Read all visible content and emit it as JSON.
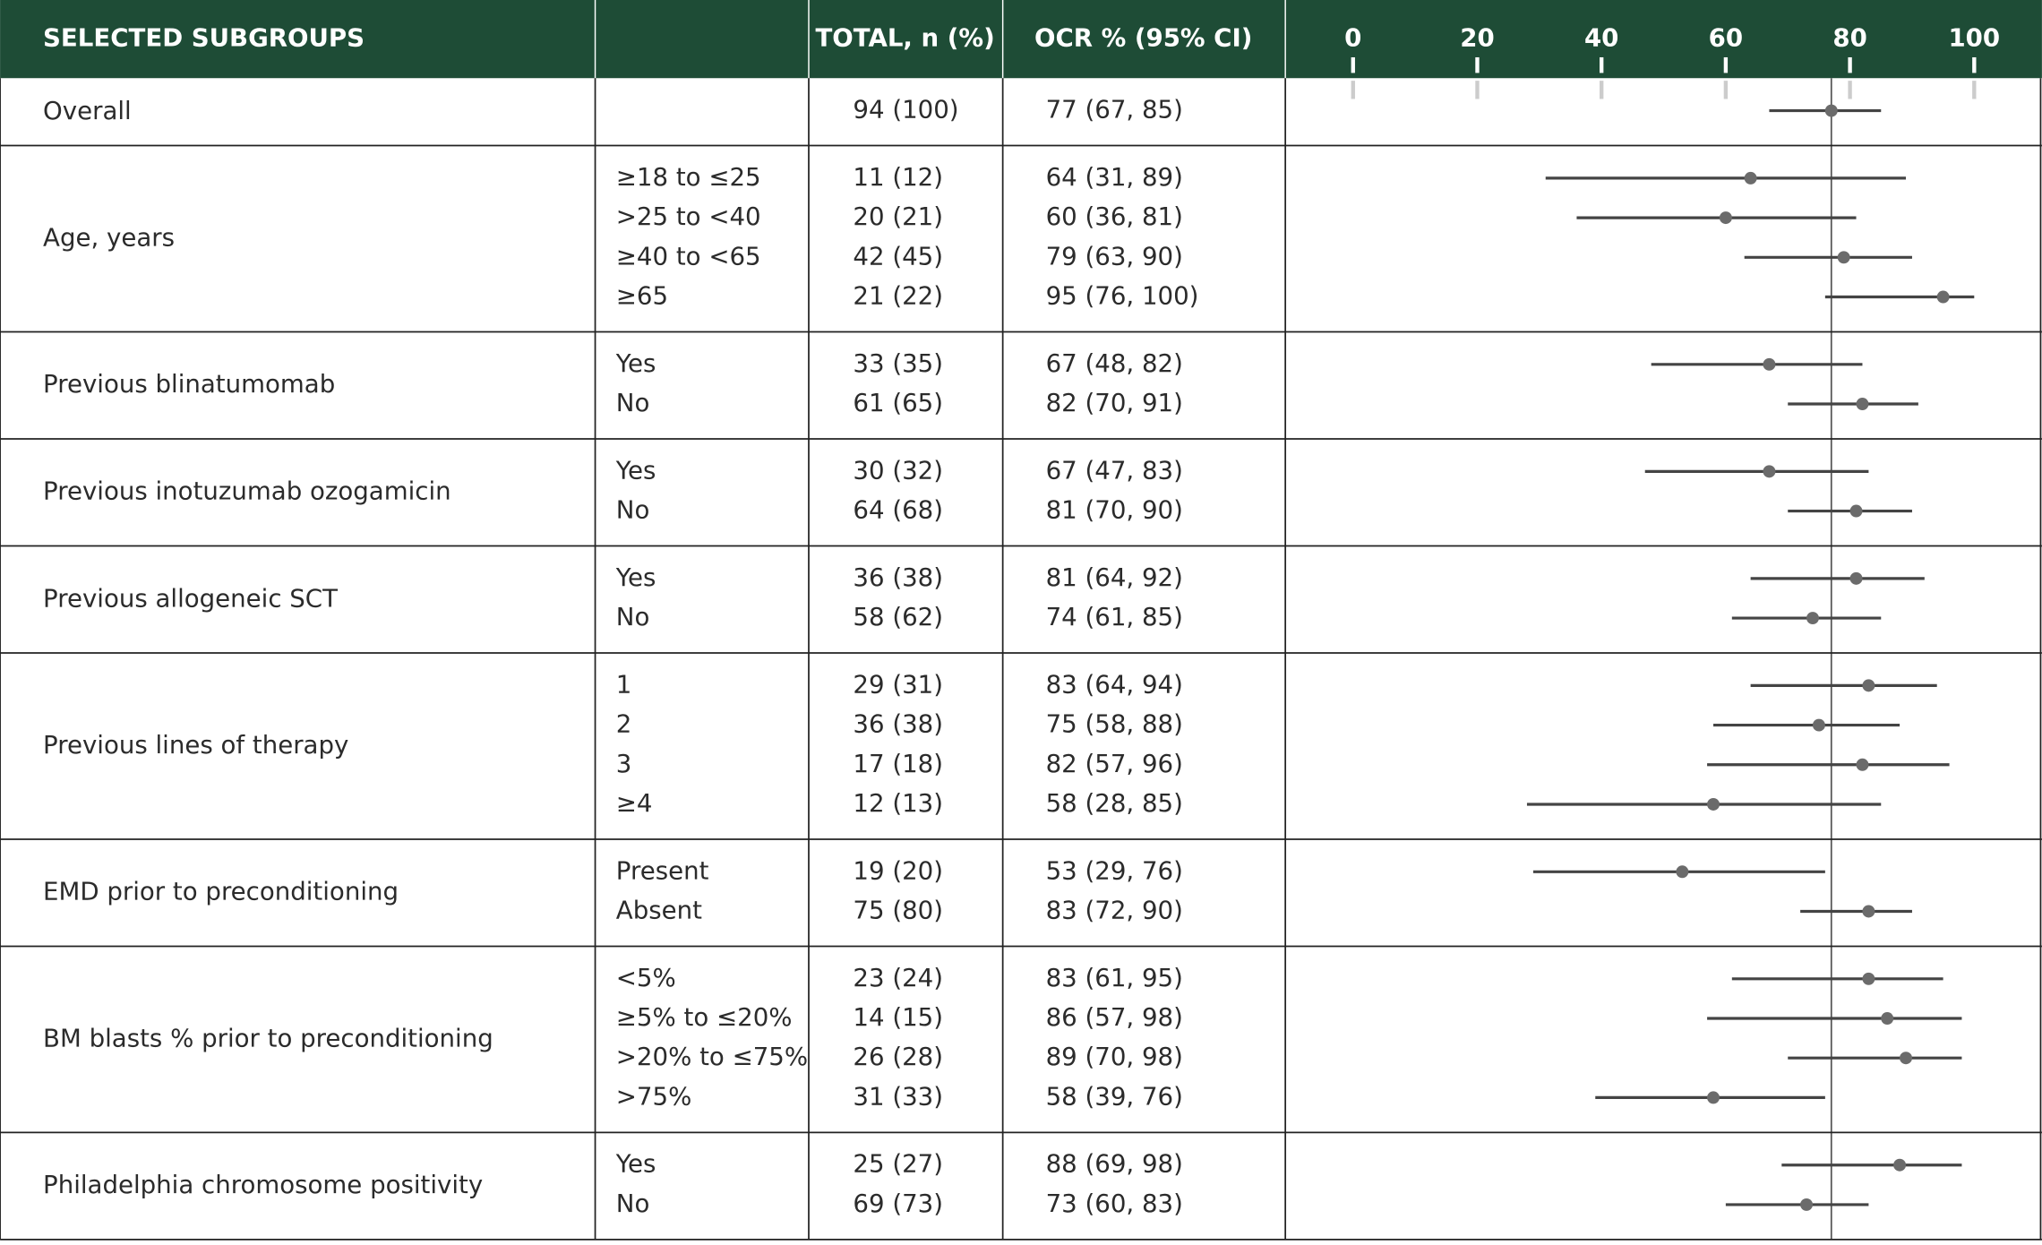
{
  "chart_data": {
    "type": "forest",
    "columns": [
      "SELECTED SUBGROUPS",
      "TOTAL, n (%)",
      "OCR % (95% CI)"
    ],
    "xlim": [
      0,
      100
    ],
    "xticks": [
      0,
      20,
      40,
      60,
      80,
      100
    ],
    "groups": [
      {
        "name": "Overall",
        "rows": [
          {
            "total": "94 (100)",
            "ocr": 77,
            "ci": [
              67,
              85
            ],
            "label": "77 (67, 85)"
          }
        ]
      },
      {
        "name": "Age, years",
        "rows": [
          {
            "subgroup": "≥18 to ≤25",
            "total": "11 (12)",
            "ocr": 64,
            "ci": [
              31,
              89
            ],
            "label": "64 (31, 89)"
          },
          {
            "subgroup": ">25 to <40",
            "total": "20 (21)",
            "ocr": 60,
            "ci": [
              36,
              81
            ],
            "label": "60 (36, 81)"
          },
          {
            "subgroup": "≥40 to <65",
            "total": "42 (45)",
            "ocr": 79,
            "ci": [
              63,
              90
            ],
            "label": "79 (63, 90)"
          },
          {
            "subgroup": "≥65",
            "total": "21 (22)",
            "ocr": 95,
            "ci": [
              76,
              100
            ],
            "label": "95 (76, 100)"
          }
        ]
      },
      {
        "name": "Previous blinatumomab",
        "rows": [
          {
            "subgroup": "Yes",
            "total": "33 (35)",
            "ocr": 67,
            "ci": [
              48,
              82
            ],
            "label": "67 (48, 82)"
          },
          {
            "subgroup": "No",
            "total": "61 (65)",
            "ocr": 82,
            "ci": [
              70,
              91
            ],
            "label": "82 (70, 91)"
          }
        ]
      },
      {
        "name": "Previous inotuzumab ozogamicin",
        "rows": [
          {
            "subgroup": "Yes",
            "total": "30 (32)",
            "ocr": 67,
            "ci": [
              47,
              83
            ],
            "label": "67 (47, 83)"
          },
          {
            "subgroup": "No",
            "total": "64 (68)",
            "ocr": 81,
            "ci": [
              70,
              90
            ],
            "label": "81 (70, 90)"
          }
        ]
      },
      {
        "name": "Previous allogeneic SCT",
        "rows": [
          {
            "subgroup": "Yes",
            "total": "36 (38)",
            "ocr": 81,
            "ci": [
              64,
              92
            ],
            "label": "81 (64, 92)"
          },
          {
            "subgroup": "No",
            "total": "58 (62)",
            "ocr": 74,
            "ci": [
              61,
              85
            ],
            "label": "74 (61, 85)"
          }
        ]
      },
      {
        "name": "Previous lines of therapy",
        "rows": [
          {
            "subgroup": "1",
            "total": "29 (31)",
            "ocr": 83,
            "ci": [
              64,
              94
            ],
            "label": "83 (64, 94)"
          },
          {
            "subgroup": "2",
            "total": "36 (38)",
            "ocr": 75,
            "ci": [
              58,
              88
            ],
            "label": "75 (58, 88)"
          },
          {
            "subgroup": "3",
            "total": "17 (18)",
            "ocr": 82,
            "ci": [
              57,
              96
            ],
            "label": "82 (57, 96)"
          },
          {
            "subgroup": "≥4",
            "total": "12 (13)",
            "ocr": 58,
            "ci": [
              28,
              85
            ],
            "label": "58 (28, 85)"
          }
        ]
      },
      {
        "name": "EMD prior to preconditioning",
        "rows": [
          {
            "subgroup": "Present",
            "total": "19 (20)",
            "ocr": 53,
            "ci": [
              29,
              76
            ],
            "label": "53 (29, 76)"
          },
          {
            "subgroup": "Absent",
            "total": "75 (80)",
            "ocr": 83,
            "ci": [
              72,
              90
            ],
            "label": "83 (72, 90)"
          }
        ]
      },
      {
        "name": "BM blasts % prior to preconditioning",
        "rows": [
          {
            "subgroup": "<5%",
            "total": "23 (24)",
            "ocr": 83,
            "ci": [
              61,
              95
            ],
            "label": "83 (61, 95)"
          },
          {
            "subgroup": "≥5% to ≤20%",
            "total": "14 (15)",
            "ocr": 86,
            "ci": [
              57,
              98
            ],
            "label": "86 (57, 98)"
          },
          {
            "subgroup": ">20% to ≤75%",
            "total": "26 (28)",
            "ocr": 89,
            "ci": [
              70,
              98
            ],
            "label": "89 (70, 98)"
          },
          {
            "subgroup": ">75%",
            "total": "31 (33)",
            "ocr": 58,
            "ci": [
              39,
              76
            ],
            "label": "58 (39, 76)"
          }
        ]
      },
      {
        "name": "Philadelphia chromosome positivity",
        "rows": [
          {
            "subgroup": "Yes",
            "total": "25 (27)",
            "ocr": 88,
            "ci": [
              69,
              98
            ],
            "label": "88 (69, 98)"
          },
          {
            "subgroup": "No",
            "total": "69 (73)",
            "ocr": 73,
            "ci": [
              60,
              83
            ],
            "label": "73 (60, 83)"
          }
        ]
      }
    ]
  }
}
